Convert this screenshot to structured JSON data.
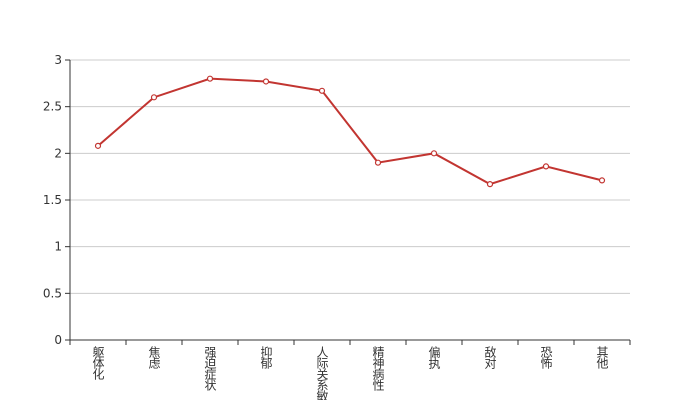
{
  "chart_data": {
    "type": "line",
    "categories": [
      "躯体化",
      "焦虑",
      "强迫症状",
      "抑郁",
      "人际关系敏感",
      "精神病性",
      "偏执",
      "敌对",
      "恐怖",
      "其他"
    ],
    "values": [
      2.08,
      2.6,
      2.8,
      2.77,
      2.67,
      1.9,
      2.0,
      1.67,
      1.86,
      1.71
    ],
    "color": "#c23531",
    "ylim": [
      0,
      3
    ],
    "yticks": [
      0,
      0.5,
      1,
      1.5,
      2,
      2.5,
      3
    ],
    "grid": true
  }
}
